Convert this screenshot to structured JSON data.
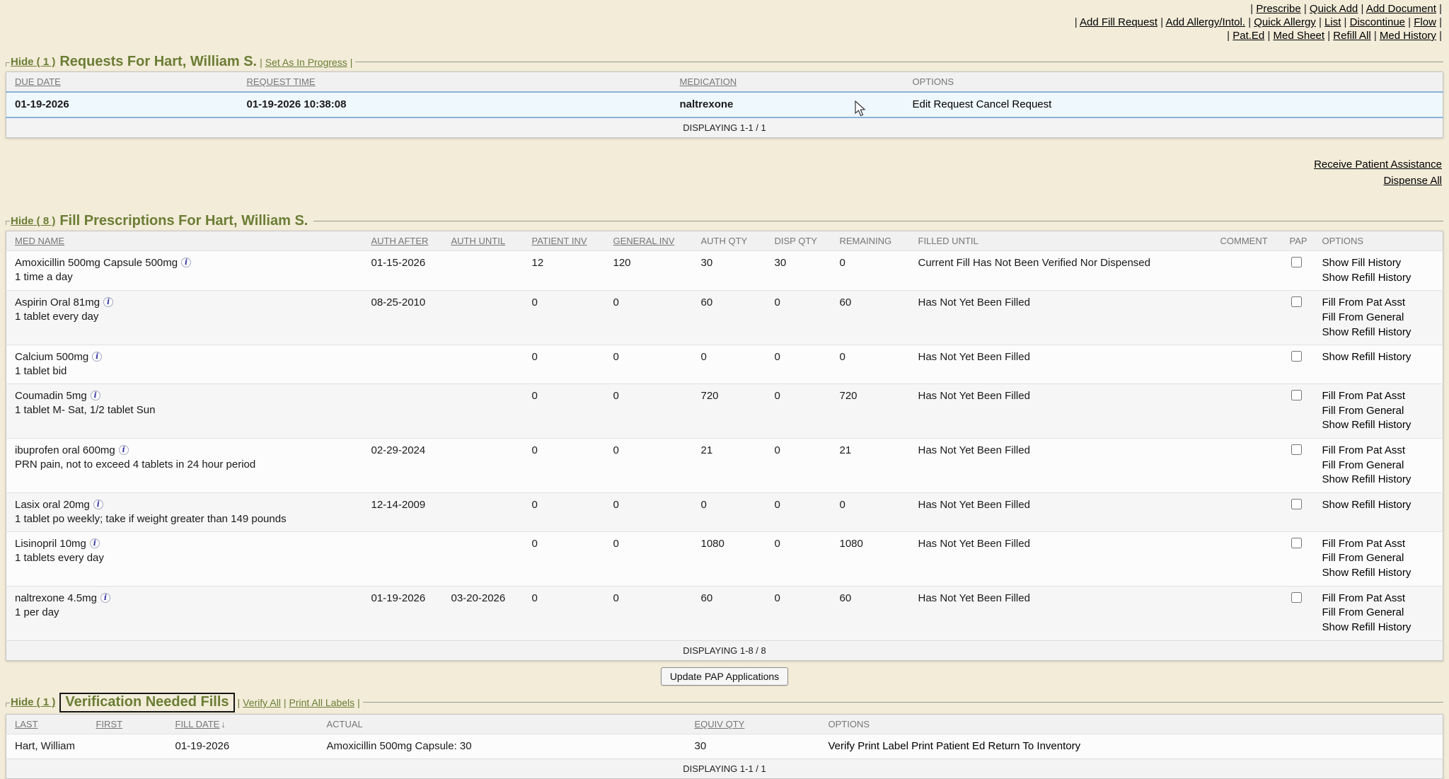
{
  "colors": {
    "page_bg": "#f2ecd9",
    "accent_green": "#6b7d34",
    "selected_row_bg": "#eff8fd",
    "selected_row_border": "#8ab2d7",
    "header_text": "#767676"
  },
  "top_nav": {
    "rows": [
      [
        "Prescribe",
        "Quick Add",
        "Add Document"
      ],
      [
        "Add Fill Request",
        "Add Allergy/Intol.",
        "Quick Allergy",
        "List",
        "Discontinue",
        "Flow"
      ],
      [
        "Pat.Ed",
        "Med Sheet",
        "Refill All",
        "Med History"
      ]
    ]
  },
  "requests": {
    "hide_label": "Hide ( 1 )",
    "title": "Requests For Hart, William S.",
    "action": "Set As In Progress",
    "table": {
      "headers": [
        {
          "label": "DUE DATE",
          "sortable": true
        },
        {
          "label": "REQUEST TIME",
          "sortable": true
        },
        {
          "label": "MEDICATION",
          "sortable": true
        },
        {
          "label": "OPTIONS",
          "sortable": false
        }
      ],
      "row": {
        "due_date": "01-19-2026",
        "request_time": "01-19-2026 10:38:08",
        "medication": "naltrexone",
        "options": [
          "Edit Request",
          "Cancel Request"
        ]
      },
      "footer": "DISPLAYING 1-1 / 1"
    }
  },
  "assist_links": [
    "Receive Patient Assistance",
    "Dispense All"
  ],
  "fills": {
    "hide_label": "Hide ( 8 )",
    "title": "Fill Prescriptions For Hart, William S.",
    "table": {
      "headers": [
        {
          "label": "MED NAME",
          "sortable": true
        },
        {
          "label": "AUTH AFTER",
          "sortable": true
        },
        {
          "label": "AUTH UNTIL",
          "sortable": true
        },
        {
          "label": "PATIENT INV",
          "sortable": true
        },
        {
          "label": "GENERAL INV",
          "sortable": true
        },
        {
          "label": "AUTH QTY",
          "sortable": false
        },
        {
          "label": "DISP QTY",
          "sortable": false
        },
        {
          "label": "REMAINING",
          "sortable": false
        },
        {
          "label": "FILLED UNTIL",
          "sortable": false
        },
        {
          "label": "COMMENT",
          "sortable": false
        },
        {
          "label": "PAP",
          "sortable": false
        },
        {
          "label": "OPTIONS",
          "sortable": false
        }
      ],
      "rows": [
        {
          "med": "Amoxicillin 500mg Capsule 500mg",
          "sig": "1 time a day",
          "auth_after": "01-15-2026",
          "auth_until": "",
          "patient_inv": "12",
          "general_inv": "120",
          "auth_qty": "30",
          "disp_qty": "30",
          "remaining": "0",
          "filled_until": "Current Fill Has Not Been Verified Nor Dispensed",
          "comment": "",
          "options": [
            "Show Fill History",
            "Show Refill History"
          ]
        },
        {
          "med": "Aspirin Oral 81mg",
          "sig": "1 tablet every day",
          "auth_after": "08-25-2010",
          "auth_until": "",
          "patient_inv": "0",
          "general_inv": "0",
          "auth_qty": "60",
          "disp_qty": "0",
          "remaining": "60",
          "filled_until": "Has Not Yet Been Filled",
          "comment": "",
          "options": [
            "Fill From Pat Asst",
            "Fill From General",
            "Show Refill History"
          ]
        },
        {
          "med": "Calcium 500mg",
          "sig": "1 tablet bid",
          "auth_after": "",
          "auth_until": "",
          "patient_inv": "0",
          "general_inv": "0",
          "auth_qty": "0",
          "disp_qty": "0",
          "remaining": "0",
          "filled_until": "Has Not Yet Been Filled",
          "comment": "",
          "options": [
            "Show Refill History"
          ]
        },
        {
          "med": "Coumadin 5mg",
          "sig": "1 tablet M- Sat, 1/2 tablet Sun",
          "auth_after": "",
          "auth_until": "",
          "patient_inv": "0",
          "general_inv": "0",
          "auth_qty": "720",
          "disp_qty": "0",
          "remaining": "720",
          "filled_until": "Has Not Yet Been Filled",
          "comment": "",
          "options": [
            "Fill From Pat Asst",
            "Fill From General",
            "Show Refill History"
          ]
        },
        {
          "med": "ibuprofen oral 600mg",
          "sig": "PRN pain, not to exceed 4 tablets in 24 hour period",
          "auth_after": "02-29-2024",
          "auth_until": "",
          "patient_inv": "0",
          "general_inv": "0",
          "auth_qty": "21",
          "disp_qty": "0",
          "remaining": "21",
          "filled_until": "Has Not Yet Been Filled",
          "comment": "",
          "options": [
            "Fill From Pat Asst",
            "Fill From General",
            "Show Refill History"
          ]
        },
        {
          "med": "Lasix oral 20mg",
          "sig": "1 tablet po weekly; take if weight greater than 149 pounds",
          "auth_after": "12-14-2009",
          "auth_until": "",
          "patient_inv": "0",
          "general_inv": "0",
          "auth_qty": "0",
          "disp_qty": "0",
          "remaining": "0",
          "filled_until": "Has Not Yet Been Filled",
          "comment": "",
          "options": [
            "Show Refill History"
          ]
        },
        {
          "med": "Lisinopril 10mg",
          "sig": "1 tablets every day",
          "auth_after": "",
          "auth_until": "",
          "patient_inv": "0",
          "general_inv": "0",
          "auth_qty": "1080",
          "disp_qty": "0",
          "remaining": "1080",
          "filled_until": "Has Not Yet Been Filled",
          "comment": "",
          "options": [
            "Fill From Pat Asst",
            "Fill From General",
            "Show Refill History"
          ]
        },
        {
          "med": "naltrexone 4.5mg",
          "sig": "1 per day",
          "auth_after": "01-19-2026",
          "auth_until": "03-20-2026",
          "patient_inv": "0",
          "general_inv": "0",
          "auth_qty": "60",
          "disp_qty": "0",
          "remaining": "60",
          "filled_until": "Has Not Yet Been Filled",
          "comment": "",
          "options": [
            "Fill From Pat Asst",
            "Fill From General",
            "Show Refill History"
          ]
        }
      ],
      "footer": "DISPLAYING 1-8 / 8"
    },
    "button_label": "Update PAP Applications"
  },
  "verification": {
    "hide_label": "Hide ( 1 )",
    "title": "Verification Needed Fills",
    "actions": [
      "Verify All",
      "Print All Labels"
    ],
    "table": {
      "headers": [
        {
          "label": "LAST",
          "sortable": true
        },
        {
          "label": "FIRST",
          "sortable": true
        },
        {
          "label": "FILL DATE",
          "sortable": true,
          "sort_indicator": "↓"
        },
        {
          "label": "ACTUAL",
          "sortable": false
        },
        {
          "label": "EQUIV QTY",
          "sortable": true
        },
        {
          "label": "OPTIONS",
          "sortable": false
        }
      ],
      "row": {
        "last": "Hart, William",
        "first": "",
        "fill_date": "01-19-2026",
        "actual": "Amoxicillin 500mg Capsule: 30",
        "equiv_qty": "30",
        "options": [
          "Verify",
          "Print Label",
          "Print Patient Ed",
          "Return To Inventory"
        ]
      },
      "footer": "DISPLAYING 1-1 / 1"
    }
  }
}
